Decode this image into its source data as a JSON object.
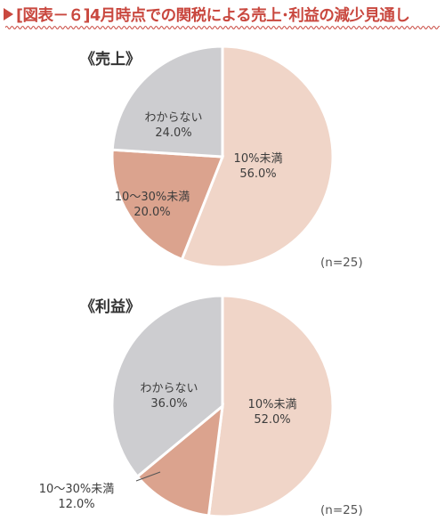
{
  "title": "[図表－６]4月時点での関税による売上･利益の減少見通し",
  "colors": {
    "accent": "#c9483f",
    "slice_1": "#f0d5c8",
    "slice_2": "#dba38e",
    "slice_3": "#cdcdd0",
    "slice_stroke": "#ffffff",
    "leader": "#555555"
  },
  "chart_data": [
    {
      "type": "pie",
      "title": "《売上》",
      "note": "(n=25)",
      "categories": [
        "10%未満",
        "10～30%未満",
        "わからない"
      ],
      "values": [
        56.0,
        20.0,
        24.0
      ],
      "value_labels": [
        "56.0%",
        "20.0%",
        "24.0%"
      ],
      "start": "12 o'clock",
      "direction": "clockwise",
      "legend": "none (labels on slices)"
    },
    {
      "type": "pie",
      "title": "《利益》",
      "note": "(n=25)",
      "categories": [
        "10%未満",
        "10～30%未満",
        "わからない"
      ],
      "values": [
        52.0,
        12.0,
        36.0
      ],
      "value_labels": [
        "52.0%",
        "12.0%",
        "36.0%"
      ],
      "start": "12 o'clock",
      "direction": "clockwise",
      "legend": "none (labels on slices, small slice labeled outside with leader line)"
    }
  ]
}
